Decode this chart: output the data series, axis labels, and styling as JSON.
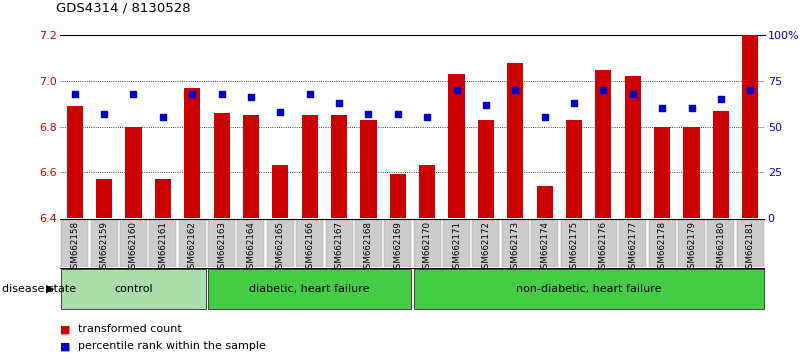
{
  "title": "GDS4314 / 8130528",
  "samples": [
    "GSM662158",
    "GSM662159",
    "GSM662160",
    "GSM662161",
    "GSM662162",
    "GSM662163",
    "GSM662164",
    "GSM662165",
    "GSM662166",
    "GSM662167",
    "GSM662168",
    "GSM662169",
    "GSM662170",
    "GSM662171",
    "GSM662172",
    "GSM662173",
    "GSM662174",
    "GSM662175",
    "GSM662176",
    "GSM662177",
    "GSM662178",
    "GSM662179",
    "GSM662180",
    "GSM662181"
  ],
  "bar_values": [
    6.89,
    6.57,
    6.8,
    6.57,
    6.97,
    6.86,
    6.85,
    6.63,
    6.85,
    6.85,
    6.83,
    6.59,
    6.63,
    7.03,
    6.83,
    7.08,
    6.54,
    6.83,
    7.05,
    7.02,
    6.8,
    6.8,
    6.87,
    7.2
  ],
  "percentile_values": [
    68,
    57,
    68,
    55,
    68,
    68,
    66,
    58,
    68,
    63,
    57,
    57,
    55,
    70,
    62,
    70,
    55,
    63,
    70,
    68,
    60,
    60,
    65,
    70
  ],
  "bar_color": "#cc0000",
  "dot_color": "#0000cc",
  "ymin": 6.4,
  "ymax": 7.2,
  "yticks_left": [
    6.4,
    6.6,
    6.8,
    7.0,
    7.2
  ],
  "yticks_right": [
    0,
    25,
    50,
    75,
    100
  ],
  "ytick_labels_right": [
    "0",
    "25",
    "50",
    "75",
    "100%"
  ],
  "hgrid_lines": [
    6.6,
    6.8,
    7.0
  ],
  "group_defs": [
    {
      "label": "control",
      "start": 0,
      "end": 4,
      "color": "#aaddaa"
    },
    {
      "label": "diabetic, heart failure",
      "start": 5,
      "end": 11,
      "color": "#44cc44"
    },
    {
      "label": "non-diabetic, heart failure",
      "start": 12,
      "end": 23,
      "color": "#44cc44"
    }
  ],
  "disease_state_label": "disease state",
  "legend_items": [
    {
      "color": "#cc0000",
      "label": "transformed count"
    },
    {
      "color": "#0000cc",
      "label": "percentile rank within the sample"
    }
  ],
  "bg_color": "#ffffff",
  "xticklabel_bg": "#cccccc",
  "bar_width": 0.55
}
